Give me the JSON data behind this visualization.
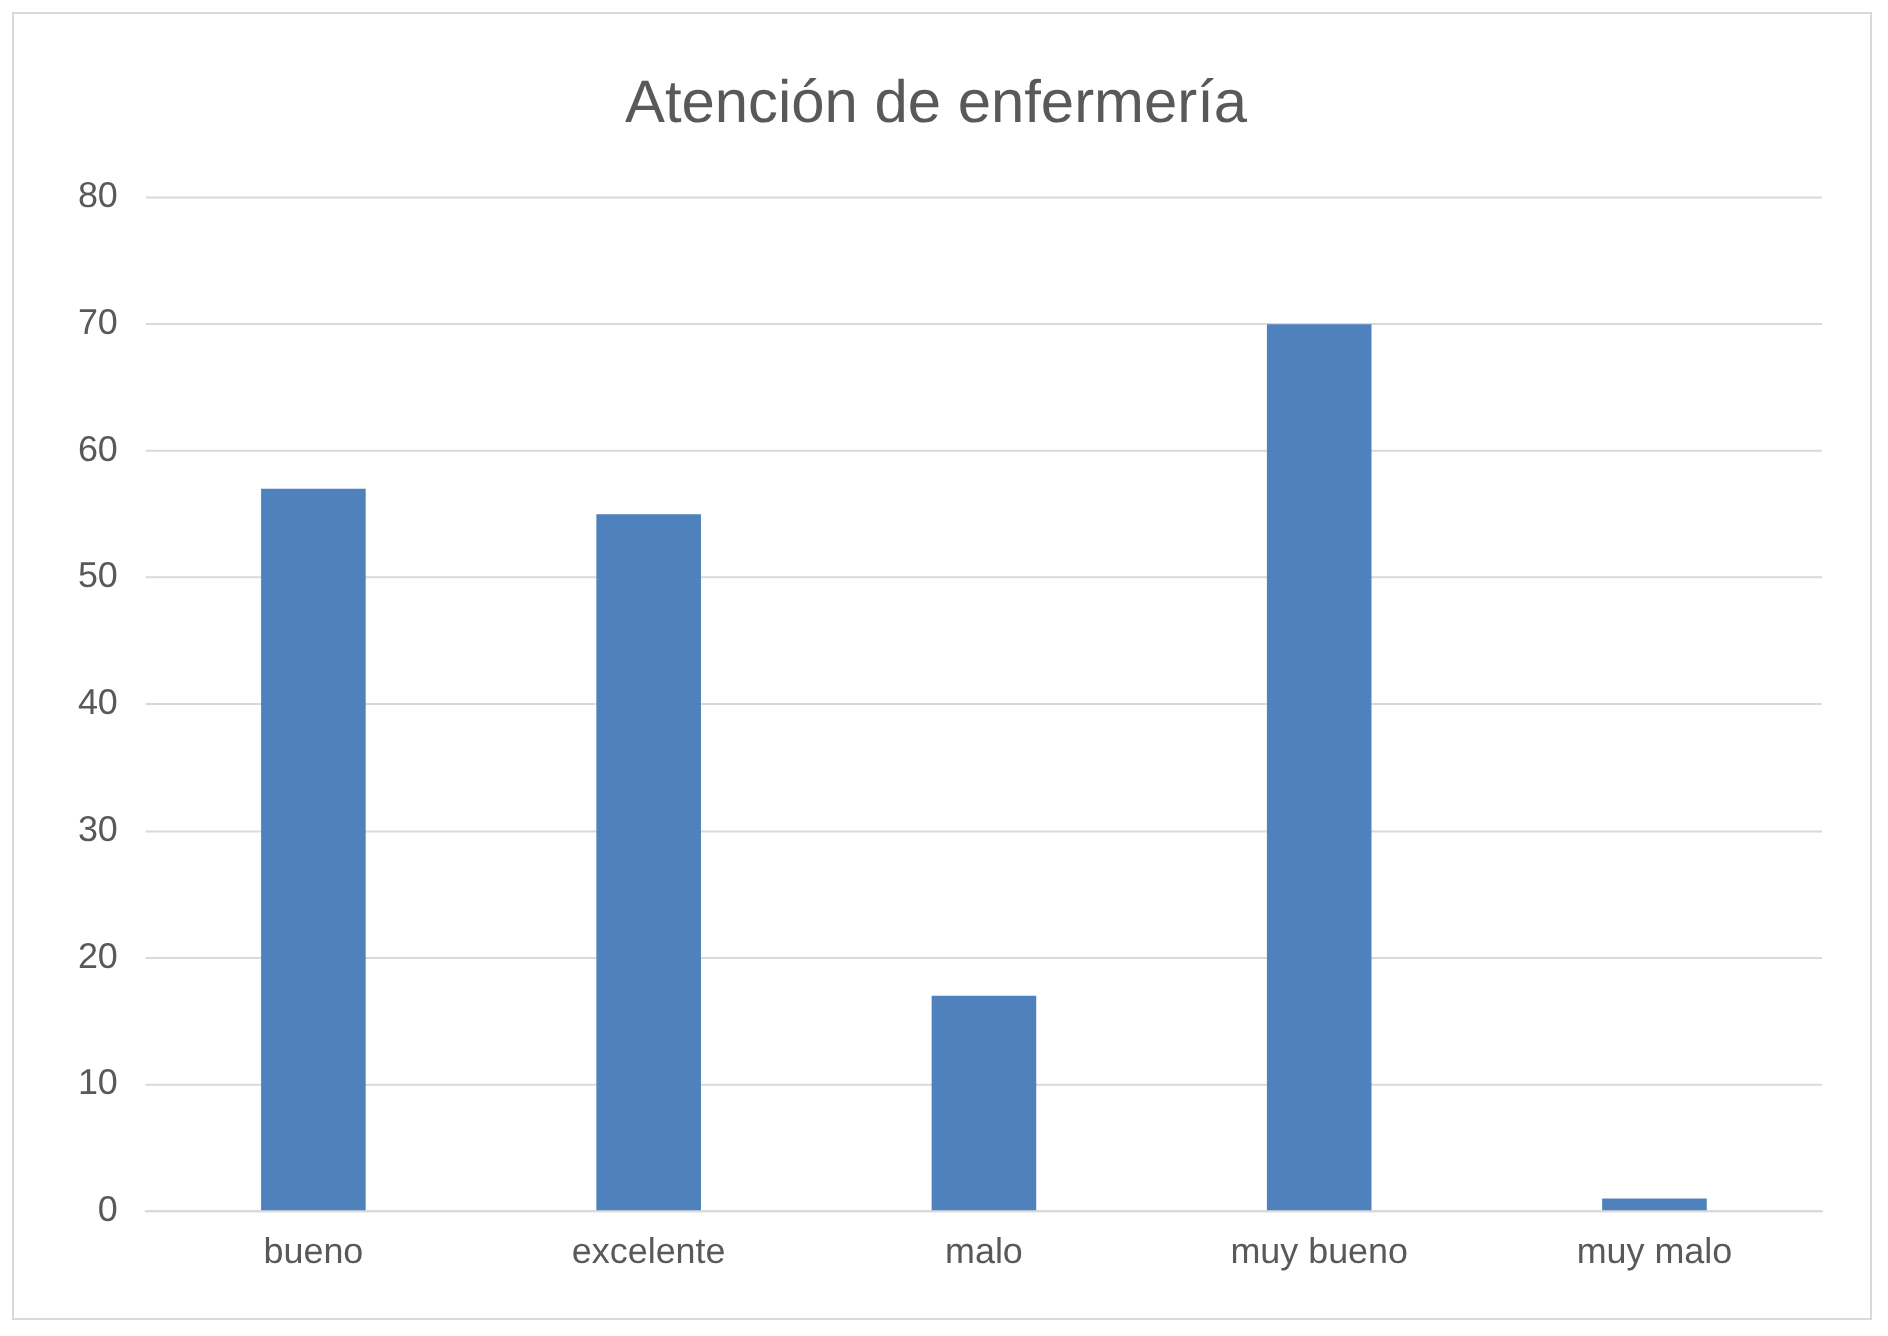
{
  "chart_data": {
    "type": "bar",
    "title": "Atención de enfermería",
    "categories": [
      "bueno",
      "excelente",
      "malo",
      "muy bueno",
      "muy malo"
    ],
    "values": [
      57,
      55,
      17,
      70,
      1
    ],
    "color": "#4f81bd",
    "ylim": [
      0,
      80
    ],
    "yticks": [
      0,
      10,
      20,
      30,
      40,
      50,
      60,
      70,
      80
    ],
    "grid": "y",
    "legend": false
  }
}
